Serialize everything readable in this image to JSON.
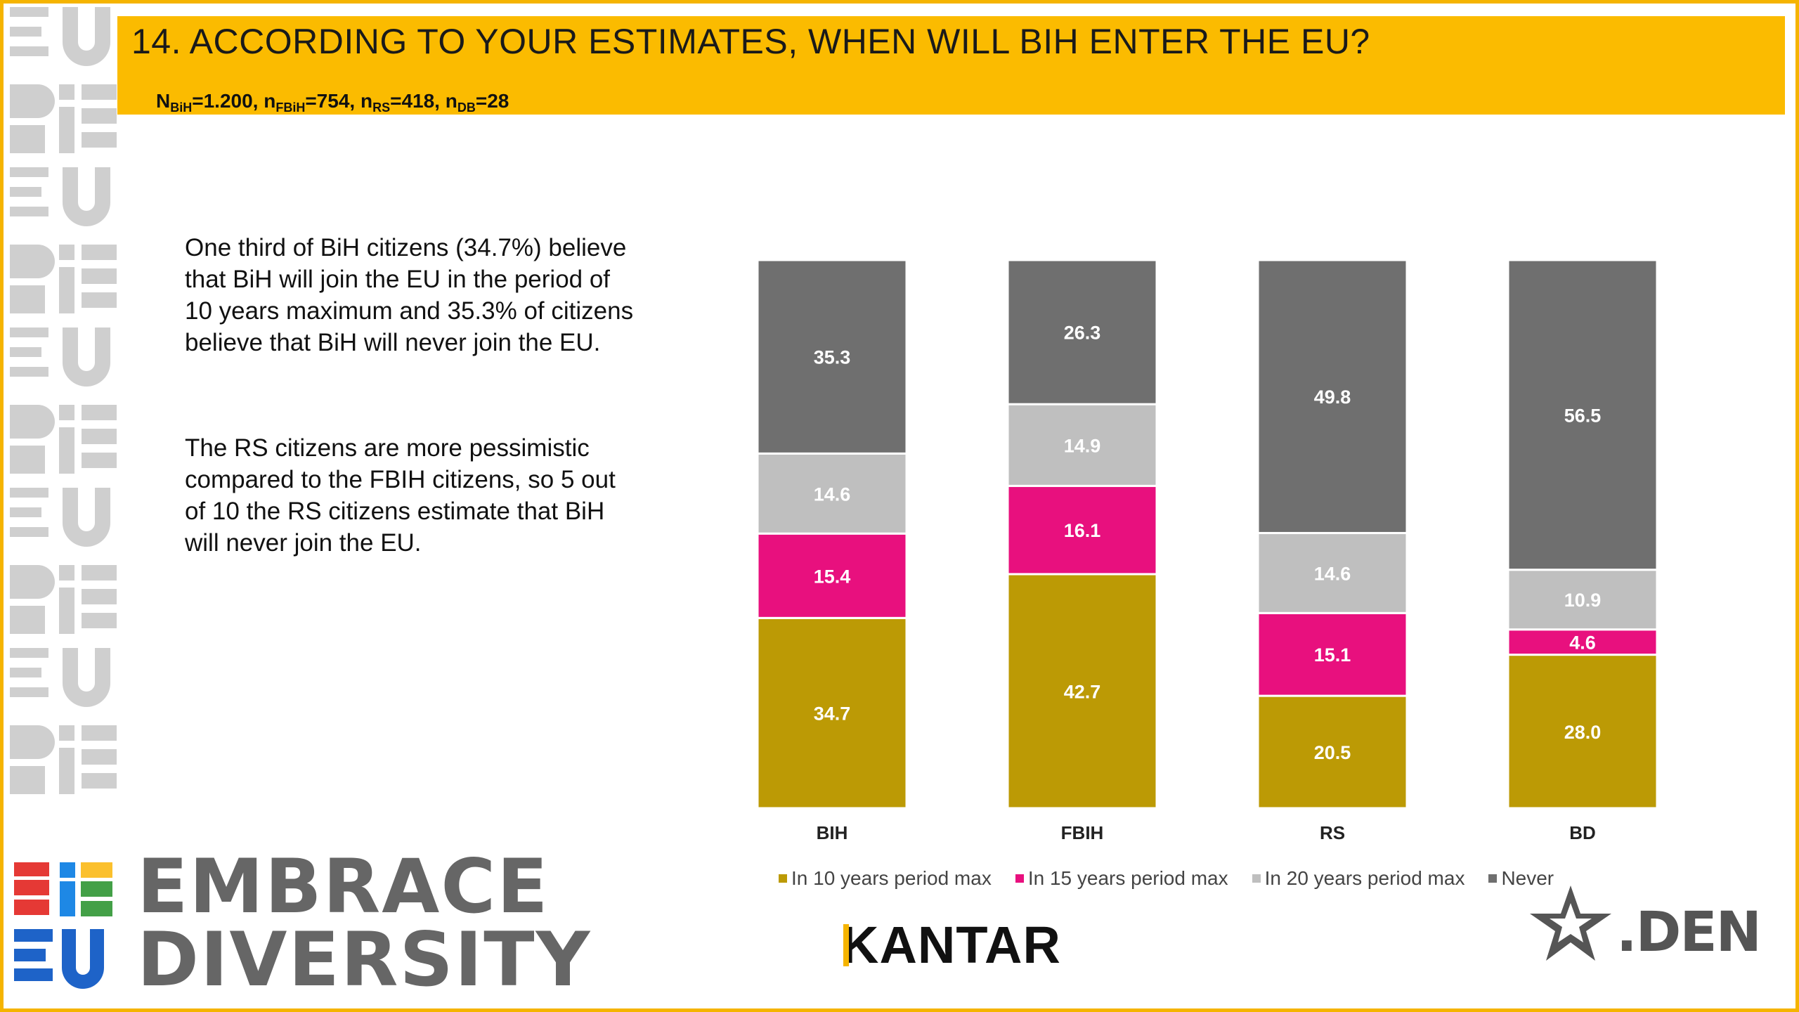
{
  "header": {
    "title": "14. ACCORDING TO YOUR ESTIMATES, WHEN WILL BIH ENTER THE EU?",
    "sample": {
      "n_bih_label": "N",
      "n_bih_sub": "BiH",
      "n_bih_val": "=1.200, ",
      "n_fbih_label": "n",
      "n_fbih_sub": "FBiH",
      "n_fbih_val": "=754, ",
      "n_rs_label": "n",
      "n_rs_sub": "RS",
      "n_rs_val": "=418, ",
      "n_db_label": "n",
      "n_db_sub": "DB",
      "n_db_val": "=28"
    }
  },
  "text": {
    "para1": "One third of BiH citizens (34.7%) believe that BiH will join the EU in the period of 10 years maximum and 35.3% of citizens believe that BiH will never join the EU.",
    "para2": "The RS citizens are more pessimistic compared to the FBIH citizens, so 5 out of 10 the RS citizens estimate that BiH will never join the EU."
  },
  "chart_data": {
    "type": "bar",
    "stacked": true,
    "orientation": "vertical",
    "categories": [
      "BIH",
      "FBIH",
      "RS",
      "BD"
    ],
    "series": [
      {
        "name": "In 10 years period max",
        "color": "#bc9a05",
        "values": [
          34.7,
          42.7,
          20.5,
          28.0
        ]
      },
      {
        "name": "In 15 years period max",
        "color": "#e8107e",
        "values": [
          15.4,
          16.1,
          15.1,
          4.6
        ]
      },
      {
        "name": "In 20 years period max",
        "color": "#bfbfbf",
        "values": [
          14.6,
          14.9,
          14.6,
          10.9
        ]
      },
      {
        "name": "Never",
        "color": "#6f6f6f",
        "values": [
          35.3,
          26.3,
          49.8,
          56.5
        ]
      }
    ],
    "ylim": [
      0,
      100
    ],
    "grid": false,
    "legend_position": "bottom",
    "label_format": "0.0"
  },
  "logos": {
    "kantar": "KANTAR",
    "den": ".DEN",
    "embrace_line1": "EMBRACE",
    "embrace_line2": "DIVERSITY"
  }
}
